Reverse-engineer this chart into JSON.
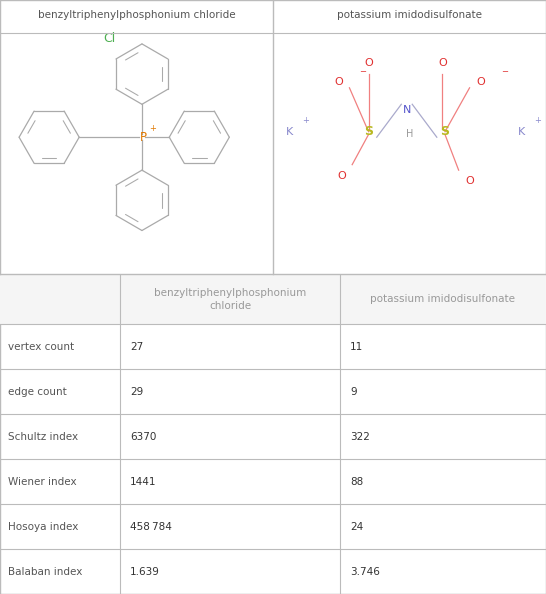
{
  "compound1": "benzyltriphenylphosphonium chloride",
  "compound2": "potassium imidodisulfonate",
  "col1_header": "benzyltriphenylphosphonium\nchloride",
  "col2_header": "potassium imidodisulfonate",
  "rows": [
    {
      "label": "vertex count",
      "val1": "27",
      "val2": "11"
    },
    {
      "label": "edge count",
      "val1": "29",
      "val2": "9"
    },
    {
      "label": "Schultz index",
      "val1": "6370",
      "val2": "322"
    },
    {
      "label": "Wiener index",
      "val1": "1441",
      "val2": "88"
    },
    {
      "label": "Hosoya index",
      "val1": "458 784",
      "val2": "24"
    },
    {
      "label": "Balaban index",
      "val1": "1.639",
      "val2": "3.746"
    }
  ],
  "border_color": "#bbbbbb",
  "bg_color": "#ffffff",
  "text_color": "#333333",
  "header_text_color": "#999999",
  "fig_width": 5.46,
  "fig_height": 5.94,
  "mol1_cl_color": "#4caf50",
  "mol1_p_color": "#e07800",
  "mol1_bond_color": "#aaaaaa",
  "mol2_s_color": "#b8b820",
  "mol2_o_color": "#e03030",
  "mol2_o_bond_color": "#f08080",
  "mol2_n_color": "#5555cc",
  "mol2_n_bond_color": "#aaaacc",
  "mol2_k_color": "#8888cc",
  "mol2_bond_color": "#aaaaaa",
  "header_bg": "#f5f5f5",
  "label_color": "#555555"
}
